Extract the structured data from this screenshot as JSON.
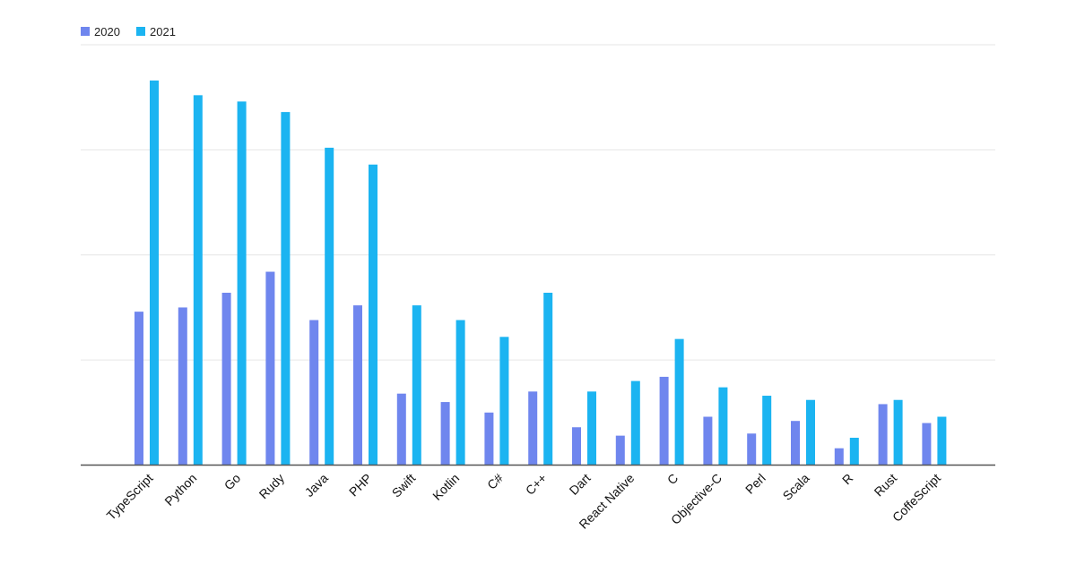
{
  "chart_data": {
    "type": "bar",
    "title": "",
    "xlabel": "",
    "ylabel": "",
    "ylim": [
      0,
      100
    ],
    "grid": true,
    "legend": "top-left",
    "categories": [
      "TypeScript",
      "Python",
      "Go",
      "Rudy",
      "Java",
      "PHP",
      "Swift",
      "Kotlin",
      "C#",
      "C++",
      "Dart",
      "React Native",
      "C",
      "Objective-C",
      "Perl",
      "Scala",
      "R",
      "Rust",
      "CoffeScript"
    ],
    "series": [
      {
        "name": "2020",
        "color": "#6f86ee",
        "values": [
          36.5,
          37.5,
          41,
          46,
          34.5,
          38,
          17,
          15,
          12.5,
          17.5,
          9,
          7,
          21,
          11.5,
          7.5,
          10.5,
          4,
          14.5,
          10
        ]
      },
      {
        "name": "2021",
        "color": "#1bb4f1",
        "values": [
          91.5,
          88,
          86.5,
          84,
          75.5,
          71.5,
          38,
          34.5,
          30.5,
          41,
          17.5,
          20,
          30,
          18.5,
          16.5,
          15.5,
          6.5,
          15.5,
          11.5
        ]
      }
    ]
  }
}
